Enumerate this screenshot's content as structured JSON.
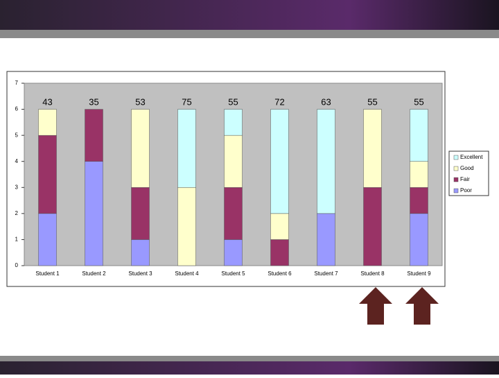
{
  "chart_data": {
    "type": "stacked_bar",
    "categories": [
      "Student 1",
      "Student 2",
      "Student 3",
      "Student 4",
      "Student 5",
      "Student 6",
      "Student 7",
      "Student 8",
      "Student 9"
    ],
    "series": [
      {
        "name": "Poor",
        "color": "#9999ff",
        "values": [
          2,
          4,
          1,
          0,
          1,
          0,
          2,
          0,
          2
        ]
      },
      {
        "name": "Fair",
        "color": "#993366",
        "values": [
          3,
          2,
          2,
          0,
          2,
          1,
          0,
          3,
          1
        ]
      },
      {
        "name": "Good",
        "color": "#ffffcc",
        "values": [
          1,
          0,
          3,
          3,
          2,
          1,
          0,
          3,
          1
        ]
      },
      {
        "name": "Excellent",
        "color": "#ccffff",
        "values": [
          0,
          0,
          0,
          3,
          1,
          4,
          4,
          0,
          2
        ]
      }
    ],
    "annotations": [
      43,
      35,
      53,
      75,
      55,
      72,
      63,
      55,
      55
    ],
    "ylim": [
      0,
      7
    ],
    "yticks": [
      0,
      1,
      2,
      3,
      4,
      5,
      6,
      7
    ],
    "grid": false,
    "legend": "right"
  }
}
